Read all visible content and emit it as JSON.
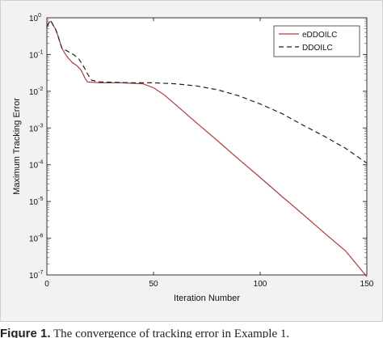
{
  "chart_data": {
    "type": "line",
    "xlabel": "Iteration Number",
    "ylabel": "Maximum Tracking Error",
    "xlim": [
      0,
      150
    ],
    "ylim_log10": [
      -7,
      0
    ],
    "y_scale": "log",
    "x_ticks": [
      "0",
      "50",
      "100",
      "150"
    ],
    "y_ticks": [
      {
        "base": "10",
        "exp": "0"
      },
      {
        "base": "10",
        "exp": "-1"
      },
      {
        "base": "10",
        "exp": "-2"
      },
      {
        "base": "10",
        "exp": "-3"
      },
      {
        "base": "10",
        "exp": "-4"
      },
      {
        "base": "10",
        "exp": "-5"
      },
      {
        "base": "10",
        "exp": "-6"
      },
      {
        "base": "10",
        "exp": "-7"
      }
    ],
    "legend_position": "top-right",
    "series": [
      {
        "name": "eDDOILC",
        "color": "#b03a3a",
        "dash": "solid",
        "points": [
          [
            0,
            0.55
          ],
          [
            1,
            0.75
          ],
          [
            2,
            0.8
          ],
          [
            3,
            0.62
          ],
          [
            4,
            0.5
          ],
          [
            5,
            0.35
          ],
          [
            7,
            0.15
          ],
          [
            9,
            0.095
          ],
          [
            10,
            0.08
          ],
          [
            12,
            0.06
          ],
          [
            14,
            0.05
          ],
          [
            16,
            0.038
          ],
          [
            18,
            0.022
          ],
          [
            19,
            0.018
          ],
          [
            25,
            0.017
          ],
          [
            35,
            0.017
          ],
          [
            45,
            0.016
          ],
          [
            50,
            0.0125
          ],
          [
            55,
            0.008
          ],
          [
            60,
            0.0045
          ],
          [
            70,
            0.0014
          ],
          [
            80,
            0.00045
          ],
          [
            90,
            0.00014
          ],
          [
            100,
            4.5e-05
          ],
          [
            110,
            1.4e-05
          ],
          [
            120,
            4.5e-06
          ],
          [
            130,
            1.4e-06
          ],
          [
            140,
            4.5e-07
          ],
          [
            150,
            9e-08
          ]
        ]
      },
      {
        "name": "DDOILC",
        "color": "#222222",
        "dash": "dashed",
        "points": [
          [
            0,
            0.55
          ],
          [
            1,
            0.75
          ],
          [
            2,
            0.8
          ],
          [
            3,
            0.62
          ],
          [
            4,
            0.5
          ],
          [
            5,
            0.35
          ],
          [
            7,
            0.15
          ],
          [
            10,
            0.12
          ],
          [
            13,
            0.095
          ],
          [
            15,
            0.075
          ],
          [
            17,
            0.05
          ],
          [
            19,
            0.03
          ],
          [
            21,
            0.02
          ],
          [
            25,
            0.018
          ],
          [
            40,
            0.017
          ],
          [
            50,
            0.017
          ],
          [
            60,
            0.016
          ],
          [
            70,
            0.014
          ],
          [
            80,
            0.011
          ],
          [
            90,
            0.0075
          ],
          [
            100,
            0.0045
          ],
          [
            110,
            0.0025
          ],
          [
            120,
            0.0012
          ],
          [
            130,
            0.0006
          ],
          [
            140,
            0.00028
          ],
          [
            150,
            0.00011
          ]
        ]
      }
    ]
  },
  "caption": {
    "label": "Figure 1.",
    "text": "The convergence of tracking error in Example 1."
  }
}
